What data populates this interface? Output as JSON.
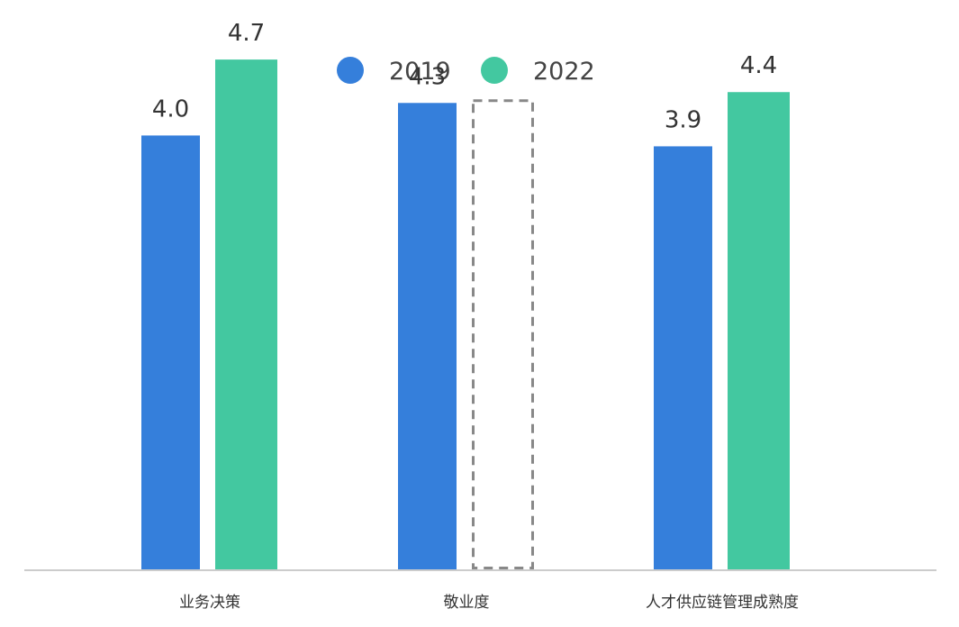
{
  "chart_data": {
    "type": "bar",
    "categories": [
      "业务决策",
      "敬业度",
      "人才供应链管理成熟度"
    ],
    "series": [
      {
        "name": "2019",
        "values": [
          4.0,
          4.3,
          3.9
        ],
        "color": "#357fdb"
      },
      {
        "name": "2022",
        "values": [
          4.7,
          null,
          4.4
        ],
        "color": "#43c8a0"
      }
    ],
    "missing_marker": "dashed-outline",
    "ylim": [
      0,
      5
    ],
    "title": "",
    "xlabel": "",
    "ylabel": "",
    "legend": "top-center",
    "grid": false,
    "axis_color": "#999999",
    "missing_color": "#888888",
    "label_color": "#333333"
  }
}
